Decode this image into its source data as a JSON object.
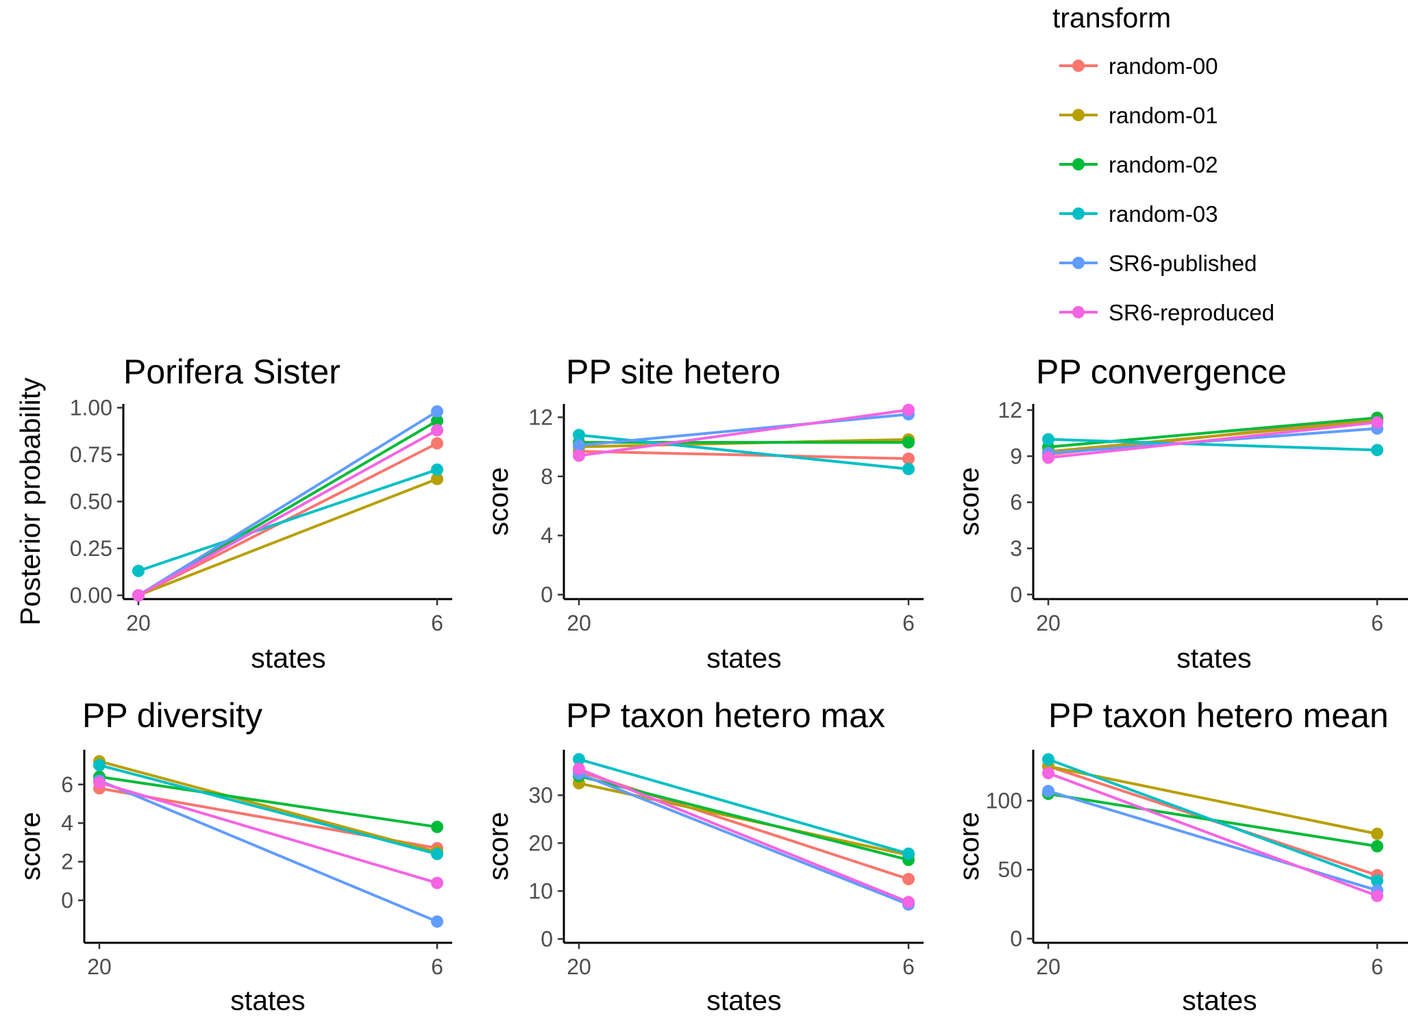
{
  "legend": {
    "title": "transform",
    "items": [
      {
        "label": "random-00",
        "color": "#F8766D"
      },
      {
        "label": "random-01",
        "color": "#B79F00"
      },
      {
        "label": "random-02",
        "color": "#00BA38"
      },
      {
        "label": "random-03",
        "color": "#00BFC4"
      },
      {
        "label": "SR6-published",
        "color": "#619CFF"
      },
      {
        "label": "SR6-reproduced",
        "color": "#F564E3"
      }
    ]
  },
  "chart_data": [
    {
      "type": "line",
      "title": "Porifera Sister",
      "xlabel": "states",
      "ylabel": "Posterior probability",
      "categories": [
        "20",
        "6"
      ],
      "ylim": [
        -0.02,
        1.02
      ],
      "yticks": [
        "0.00",
        "0.25",
        "0.50",
        "0.75",
        "1.00"
      ],
      "series": [
        {
          "name": "random-00",
          "values": [
            0.0,
            0.81
          ]
        },
        {
          "name": "random-01",
          "values": [
            0.0,
            0.62
          ]
        },
        {
          "name": "random-02",
          "values": [
            0.0,
            0.93
          ]
        },
        {
          "name": "random-03",
          "values": [
            0.13,
            0.67
          ]
        },
        {
          "name": "SR6-published",
          "values": [
            0.0,
            0.98
          ]
        },
        {
          "name": "SR6-reproduced",
          "values": [
            0.0,
            0.88
          ]
        }
      ]
    },
    {
      "type": "line",
      "title": "PP site hetero",
      "xlabel": "states",
      "ylabel": "score",
      "categories": [
        "20",
        "6"
      ],
      "ylim": [
        -0.3,
        12.9
      ],
      "yticks": [
        "0",
        "4",
        "8",
        "12"
      ],
      "series": [
        {
          "name": "random-00",
          "values": [
            9.7,
            9.2
          ]
        },
        {
          "name": "random-01",
          "values": [
            10.0,
            10.5
          ]
        },
        {
          "name": "random-02",
          "values": [
            10.3,
            10.3
          ]
        },
        {
          "name": "random-03",
          "values": [
            10.8,
            8.5
          ]
        },
        {
          "name": "SR6-published",
          "values": [
            10.1,
            12.2
          ]
        },
        {
          "name": "SR6-reproduced",
          "values": [
            9.4,
            12.5
          ]
        }
      ]
    },
    {
      "type": "line",
      "title": "PP convergence",
      "xlabel": "states",
      "ylabel": "score",
      "categories": [
        "20",
        "6"
      ],
      "ylim": [
        -0.3,
        12.4
      ],
      "yticks": [
        "0",
        "3",
        "6",
        "9",
        "12"
      ],
      "series": [
        {
          "name": "random-00",
          "values": [
            9.1,
            11.5
          ]
        },
        {
          "name": "random-01",
          "values": [
            9.3,
            11.3
          ]
        },
        {
          "name": "random-02",
          "values": [
            9.6,
            11.5
          ]
        },
        {
          "name": "random-03",
          "values": [
            10.1,
            9.4
          ]
        },
        {
          "name": "SR6-published",
          "values": [
            9.2,
            10.8
          ]
        },
        {
          "name": "SR6-reproduced",
          "values": [
            8.9,
            11.2
          ]
        }
      ]
    },
    {
      "type": "line",
      "title": "PP diversity",
      "xlabel": "states",
      "ylabel": "score",
      "categories": [
        "20",
        "6"
      ],
      "ylim": [
        -2.2,
        7.8
      ],
      "yticks": [
        "0",
        "2",
        "4",
        "6"
      ],
      "series": [
        {
          "name": "random-00",
          "values": [
            5.8,
            2.7
          ]
        },
        {
          "name": "random-01",
          "values": [
            7.2,
            2.5
          ]
        },
        {
          "name": "random-02",
          "values": [
            6.4,
            3.8
          ]
        },
        {
          "name": "random-03",
          "values": [
            7.0,
            2.4
          ]
        },
        {
          "name": "SR6-published",
          "values": [
            6.2,
            -1.1
          ]
        },
        {
          "name": "SR6-reproduced",
          "values": [
            6.1,
            0.9
          ]
        }
      ]
    },
    {
      "type": "line",
      "title": "PP taxon hetero max",
      "xlabel": "states",
      "ylabel": "score",
      "categories": [
        "20",
        "6"
      ],
      "ylim": [
        -0.8,
        39.5
      ],
      "yticks": [
        "0",
        "10",
        "20",
        "30"
      ],
      "series": [
        {
          "name": "random-00",
          "values": [
            35.0,
            12.5
          ]
        },
        {
          "name": "random-01",
          "values": [
            32.5,
            17.5
          ]
        },
        {
          "name": "random-02",
          "values": [
            34.0,
            16.5
          ]
        },
        {
          "name": "random-03",
          "values": [
            37.5,
            17.8
          ]
        },
        {
          "name": "SR6-published",
          "values": [
            34.5,
            7.2
          ]
        },
        {
          "name": "SR6-reproduced",
          "values": [
            35.5,
            7.7
          ]
        }
      ]
    },
    {
      "type": "line",
      "title": "PP taxon hetero mean",
      "xlabel": "states",
      "ylabel": "score",
      "categories": [
        "20",
        "6"
      ],
      "ylim": [
        -3,
        137
      ],
      "yticks": [
        "0",
        "50",
        "100"
      ],
      "series": [
        {
          "name": "random-00",
          "values": [
            125,
            46
          ]
        },
        {
          "name": "random-01",
          "values": [
            125,
            76
          ]
        },
        {
          "name": "random-02",
          "values": [
            105,
            67
          ]
        },
        {
          "name": "random-03",
          "values": [
            130,
            42
          ]
        },
        {
          "name": "SR6-published",
          "values": [
            107,
            35
          ]
        },
        {
          "name": "SR6-reproduced",
          "values": [
            120,
            31
          ]
        }
      ]
    }
  ]
}
